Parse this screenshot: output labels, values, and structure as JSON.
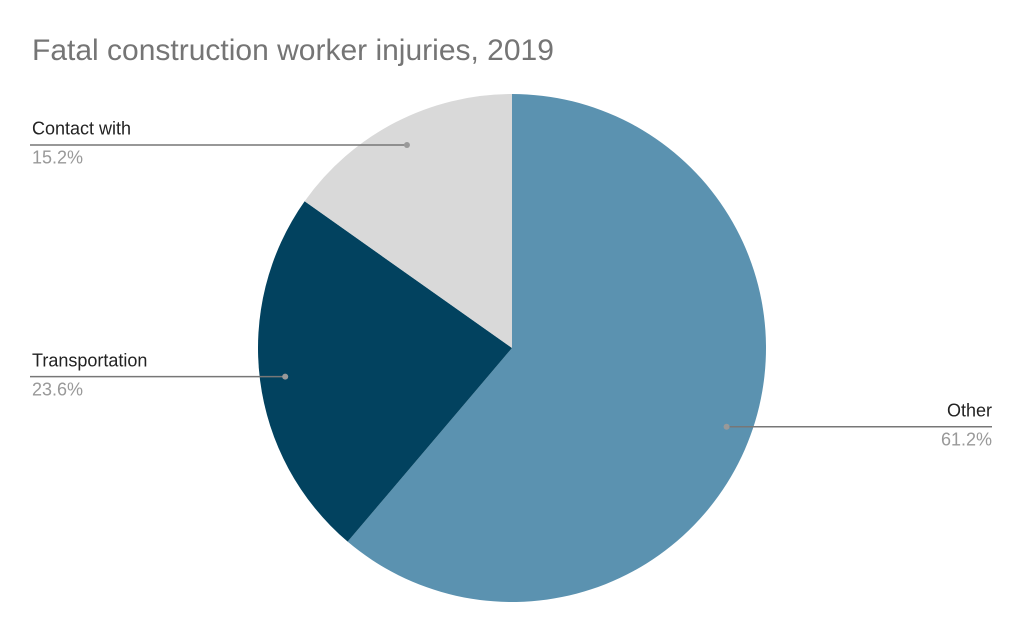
{
  "chart_data": {
    "type": "pie",
    "title": "Fatal construction worker injuries, 2019",
    "categories": [
      "Other",
      "Transportation",
      "Contact with"
    ],
    "values": [
      61.2,
      23.6,
      15.2
    ],
    "value_labels": [
      "61.2%",
      "23.6%",
      "15.2%"
    ],
    "colors": [
      "#5b92b0",
      "#02425f",
      "#d9d9d9"
    ]
  }
}
